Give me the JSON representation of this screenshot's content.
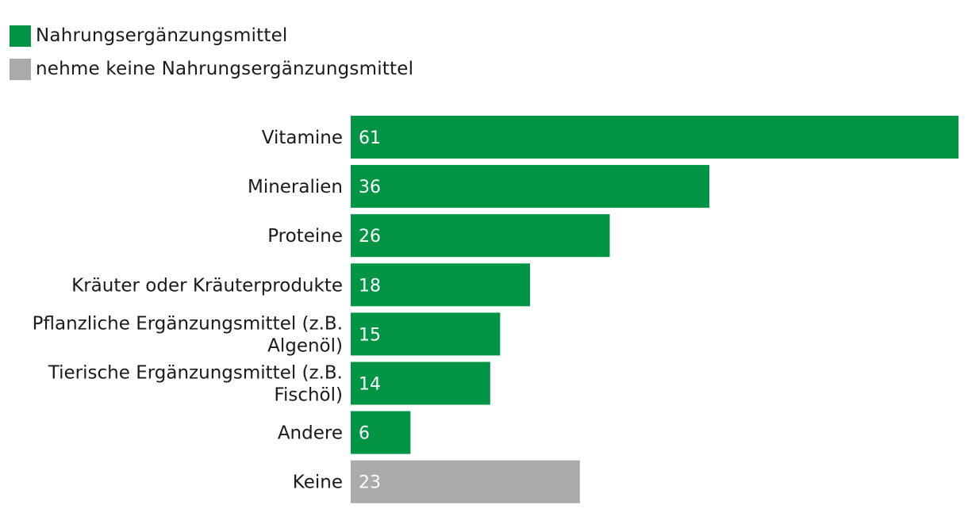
{
  "legend": [
    {
      "label": "Nahrungsergänzungsmittel",
      "color": "#009444"
    },
    {
      "label": "nehme keine Nahrungsergänzungsmittel",
      "color": "#aaaaaa"
    }
  ],
  "chart_data": {
    "type": "bar",
    "orientation": "horizontal",
    "categories": [
      "Vitamine",
      "Mineralien",
      "Proteine",
      "Kräuter oder Kräuterprodukte",
      "Pflanzliche Ergänzungsmittel (z.B. Algenöl)",
      "Tierische Ergänzungsmittel (z.B. Fischöl)",
      "Andere",
      "Keine"
    ],
    "category_label_lines": [
      [
        "Vitamine"
      ],
      [
        "Mineralien"
      ],
      [
        "Proteine"
      ],
      [
        "Kräuter oder Kräuterprodukte"
      ],
      [
        "Pflanzliche Ergänzungsmittel (z.B.",
        "Algenöl)"
      ],
      [
        "Tierische Ergänzungsmittel (z.B.",
        "Fischöl)"
      ],
      [
        "Andere"
      ],
      [
        "Keine"
      ]
    ],
    "values": [
      61,
      36,
      26,
      18,
      15,
      14,
      6,
      23
    ],
    "series_index": [
      0,
      0,
      0,
      0,
      0,
      0,
      0,
      1
    ],
    "series": [
      {
        "name": "Nahrungsergänzungsmittel",
        "color": "#009444"
      },
      {
        "name": "nehme keine Nahrungsergänzungsmittel",
        "color": "#aaaaaa"
      }
    ],
    "xlim": [
      0,
      61
    ],
    "grid": false,
    "legend_position": "top-left",
    "data_labels": true
  }
}
